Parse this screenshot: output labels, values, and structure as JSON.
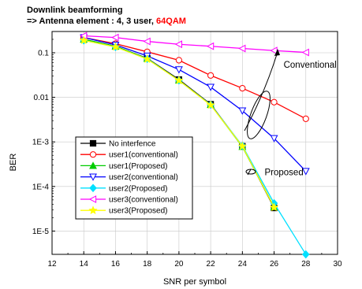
{
  "header": {
    "line1": "Downlink beamforming",
    "line2_prefix": " => Antenna element : 4, 3 user, ",
    "line2_highlight": "64QAM",
    "highlight_color": "#ff0000"
  },
  "chart_data": {
    "type": "line",
    "xlabel": "SNR per symbol",
    "ylabel": "BER",
    "xlim": [
      12,
      30
    ],
    "ylim": [
      3e-06,
      0.3
    ],
    "yscale": "log",
    "x_ticks": [
      12,
      14,
      16,
      18,
      20,
      22,
      24,
      26,
      28,
      30
    ],
    "x_tick_labels": [
      "12",
      "14",
      "16",
      "18",
      "20",
      "22",
      "24",
      "26",
      "28",
      "30"
    ],
    "y_ticks": [
      0.1,
      0.01,
      0.001,
      0.0001,
      1e-05
    ],
    "y_tick_labels": [
      "0.1",
      "0.01",
      "1E-3",
      "1E-4",
      "1E-5"
    ],
    "grid": true,
    "legend_position": "lower-left",
    "series": [
      {
        "name": "No interfence",
        "color": "#000000",
        "marker": "square-filled",
        "x": [
          14,
          16,
          18,
          20,
          22,
          24,
          26
        ],
        "y": [
          0.2,
          0.14,
          0.075,
          0.025,
          0.007,
          0.0008,
          3.3e-05
        ]
      },
      {
        "name": "user1(conventional)",
        "color": "#ff0000",
        "marker": "circle-open",
        "x": [
          14,
          16,
          18,
          20,
          22,
          24,
          26,
          28
        ],
        "y": [
          0.22,
          0.16,
          0.105,
          0.068,
          0.031,
          0.016,
          0.0078,
          0.0033
        ]
      },
      {
        "name": "user1(Proposed)",
        "color": "#00cc00",
        "marker": "triangle-up-filled",
        "x": [
          14,
          16,
          18,
          20,
          22,
          24,
          26
        ],
        "y": [
          0.2,
          0.14,
          0.074,
          0.024,
          0.0068,
          0.00078,
          3.5e-05
        ]
      },
      {
        "name": "user2(conventional)",
        "color": "#0000ff",
        "marker": "triangle-down-open",
        "x": [
          14,
          16,
          18,
          20,
          22,
          24,
          26,
          28
        ],
        "y": [
          0.22,
          0.15,
          0.085,
          0.042,
          0.017,
          0.005,
          0.0012,
          0.00022
        ]
      },
      {
        "name": "user2(Proposed)",
        "color": "#00e0ff",
        "marker": "diamond-filled",
        "x": [
          14,
          16,
          18,
          20,
          22,
          24,
          26,
          28
        ],
        "y": [
          0.19,
          0.135,
          0.073,
          0.024,
          0.0068,
          0.00082,
          4.2e-05,
          3e-06
        ]
      },
      {
        "name": "user3(conventional)",
        "color": "#ff00ff",
        "marker": "triangle-left-open",
        "x": [
          14,
          16,
          18,
          20,
          22,
          24,
          26,
          28
        ],
        "y": [
          0.24,
          0.22,
          0.18,
          0.155,
          0.14,
          0.125,
          0.112,
          0.102
        ]
      },
      {
        "name": "user3(Proposed)",
        "color": "#ffff00",
        "marker": "star-filled",
        "x": [
          14,
          16,
          18,
          20,
          22,
          24,
          26
        ],
        "y": [
          0.19,
          0.135,
          0.072,
          0.024,
          0.0067,
          0.0008,
          3.4e-05
        ]
      }
    ],
    "annotations": [
      {
        "text": "Conventional",
        "at": [
          26.6,
          0.046
        ]
      },
      {
        "text": "Proposed",
        "at": [
          25.4,
          0.00018
        ]
      }
    ]
  }
}
